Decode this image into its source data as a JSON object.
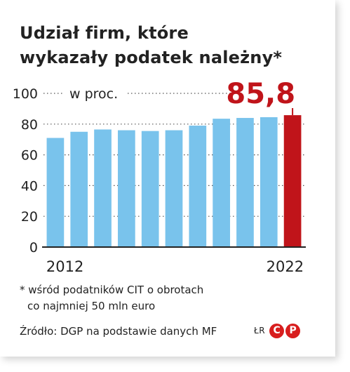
{
  "title_line1": "Udział firm, które",
  "title_line2": "wykazały podatek należny*",
  "footnote_line1": "* wśród podatników CIT o obrotach",
  "footnote_line2": "co najmniej 50 mln euro",
  "source": "Źródło: DGP na podstawie danych MF",
  "credit_initials": "ŁR",
  "logo_letters": [
    "C",
    "P"
  ],
  "colors": {
    "bar": "#79c3ec",
    "highlight": "#c0141a",
    "text": "#222222",
    "logo": "#d81e1e"
  },
  "chart_data": {
    "type": "bar",
    "title": "Udział firm, które wykazały podatek należny*",
    "unit_label": "w proc.",
    "x": [
      2012,
      2013,
      2014,
      2015,
      2016,
      2017,
      2018,
      2019,
      2020,
      2021,
      2022
    ],
    "x_tick_labels": [
      "2012",
      "2022"
    ],
    "values": [
      71,
      75,
      76.5,
      76,
      75.5,
      76,
      79,
      83.5,
      84,
      84.5,
      85.8
    ],
    "highlight_index": 10,
    "highlight_label": "85,8",
    "ylim": [
      0,
      100
    ],
    "yticks": [
      0,
      20,
      40,
      60,
      80,
      100
    ],
    "grid": "dotted"
  }
}
